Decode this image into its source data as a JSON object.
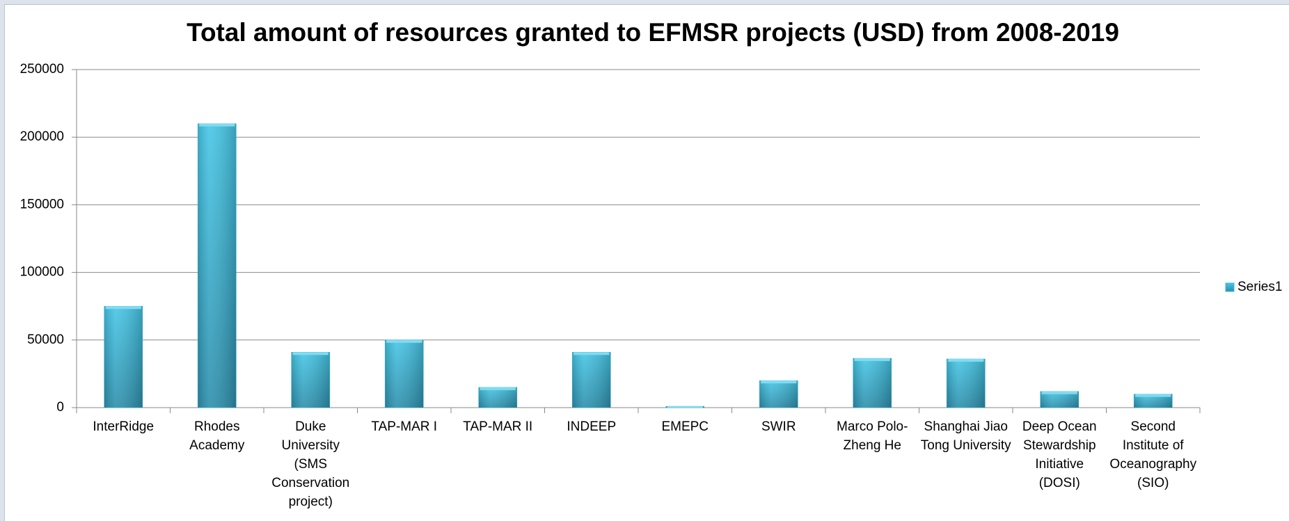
{
  "chart_data": {
    "type": "bar",
    "title": "Total amount of resources granted to EFMSR projects (USD) from 2008-2019",
    "categories": [
      "InterRidge",
      "Rhodes Academy",
      "Duke University (SMS Conservation project)",
      "TAP-MAR I",
      "TAP-MAR II",
      "INDEEP",
      "EMEPC",
      "SWIR",
      "Marco Polo-Zheng He",
      "Shanghai Jiao Tong University",
      "Deep Ocean Stewardship Initiative (DOSI)",
      "Second Institute of Oceanography (SIO)"
    ],
    "series": [
      {
        "name": "Series1",
        "color": "#38b8da",
        "values": [
          75000,
          210000,
          41000,
          50000,
          15000,
          41000,
          1000,
          20000,
          36500,
          36000,
          12000,
          10000
        ]
      }
    ],
    "ylim": [
      0,
      250000
    ],
    "yticks": [
      0,
      50000,
      100000,
      150000,
      200000,
      250000
    ],
    "grid": true,
    "legend": "right"
  }
}
